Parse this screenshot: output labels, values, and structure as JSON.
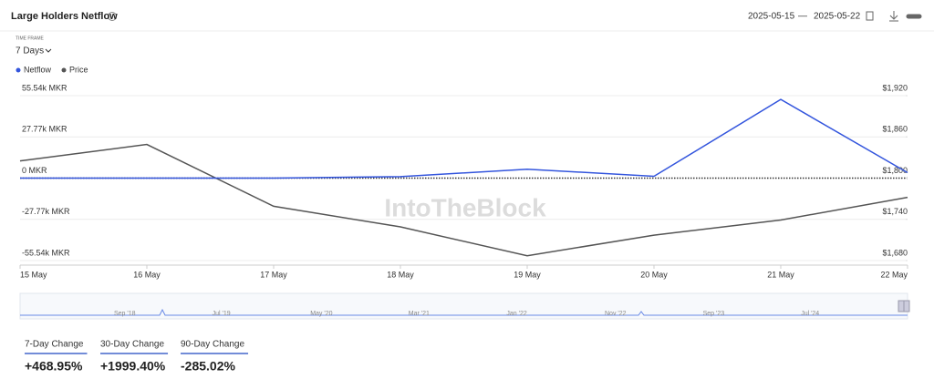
{
  "header": {
    "title": "Large Holders Netflow",
    "date_from": "2025-05-15",
    "date_separator": "—",
    "date_to": "2025-05-22"
  },
  "time_frame": {
    "label": "TIME FRAME",
    "value": "7 Days"
  },
  "watermark": "IntoTheBlock",
  "chart_data": {
    "type": "line",
    "categories": [
      "15 May",
      "16 May",
      "17 May",
      "18 May",
      "19 May",
      "20 May",
      "21 May",
      "22 May"
    ],
    "series": [
      {
        "name": "Netflow",
        "color": "#3355dd",
        "values": [
          0,
          0,
          0,
          1000,
          6000,
          1200,
          53000,
          3700
        ]
      },
      {
        "name": "Price",
        "color": "#555555",
        "axis": "y2",
        "values": [
          1825,
          1849,
          1759,
          1729,
          1687,
          1717,
          1739,
          1772
        ]
      }
    ],
    "ylim": [
      -55540,
      55540
    ],
    "yticks": [
      {
        "value": 55540,
        "label": "55.54k MKR"
      },
      {
        "value": 27770,
        "label": "27.77k MKR"
      },
      {
        "value": 0,
        "label": "0 MKR"
      },
      {
        "value": -27770,
        "label": "-27.77k MKR"
      },
      {
        "value": -55540,
        "label": "-55.54k MKR"
      }
    ],
    "y2lim": [
      1680,
      1920
    ],
    "y2ticks": [
      {
        "value": 1920,
        "label": "$1,920"
      },
      {
        "value": 1860,
        "label": "$1,860"
      },
      {
        "value": 1800,
        "label": "$1,800"
      },
      {
        "value": 1740,
        "label": "$1,740"
      },
      {
        "value": 1680,
        "label": "$1,680"
      }
    ],
    "grid": true
  },
  "navigator": {
    "labels": [
      "Sep '18",
      "Jul '19",
      "May '20",
      "Mar '21",
      "Jan '22",
      "Nov '22",
      "Sep '23",
      "Jul '24"
    ]
  },
  "stats": [
    {
      "label": "7-Day Change",
      "value": "+468.95%"
    },
    {
      "label": "30-Day Change",
      "value": "+1999.40%"
    },
    {
      "label": "90-Day Change",
      "value": "-285.02%"
    }
  ]
}
